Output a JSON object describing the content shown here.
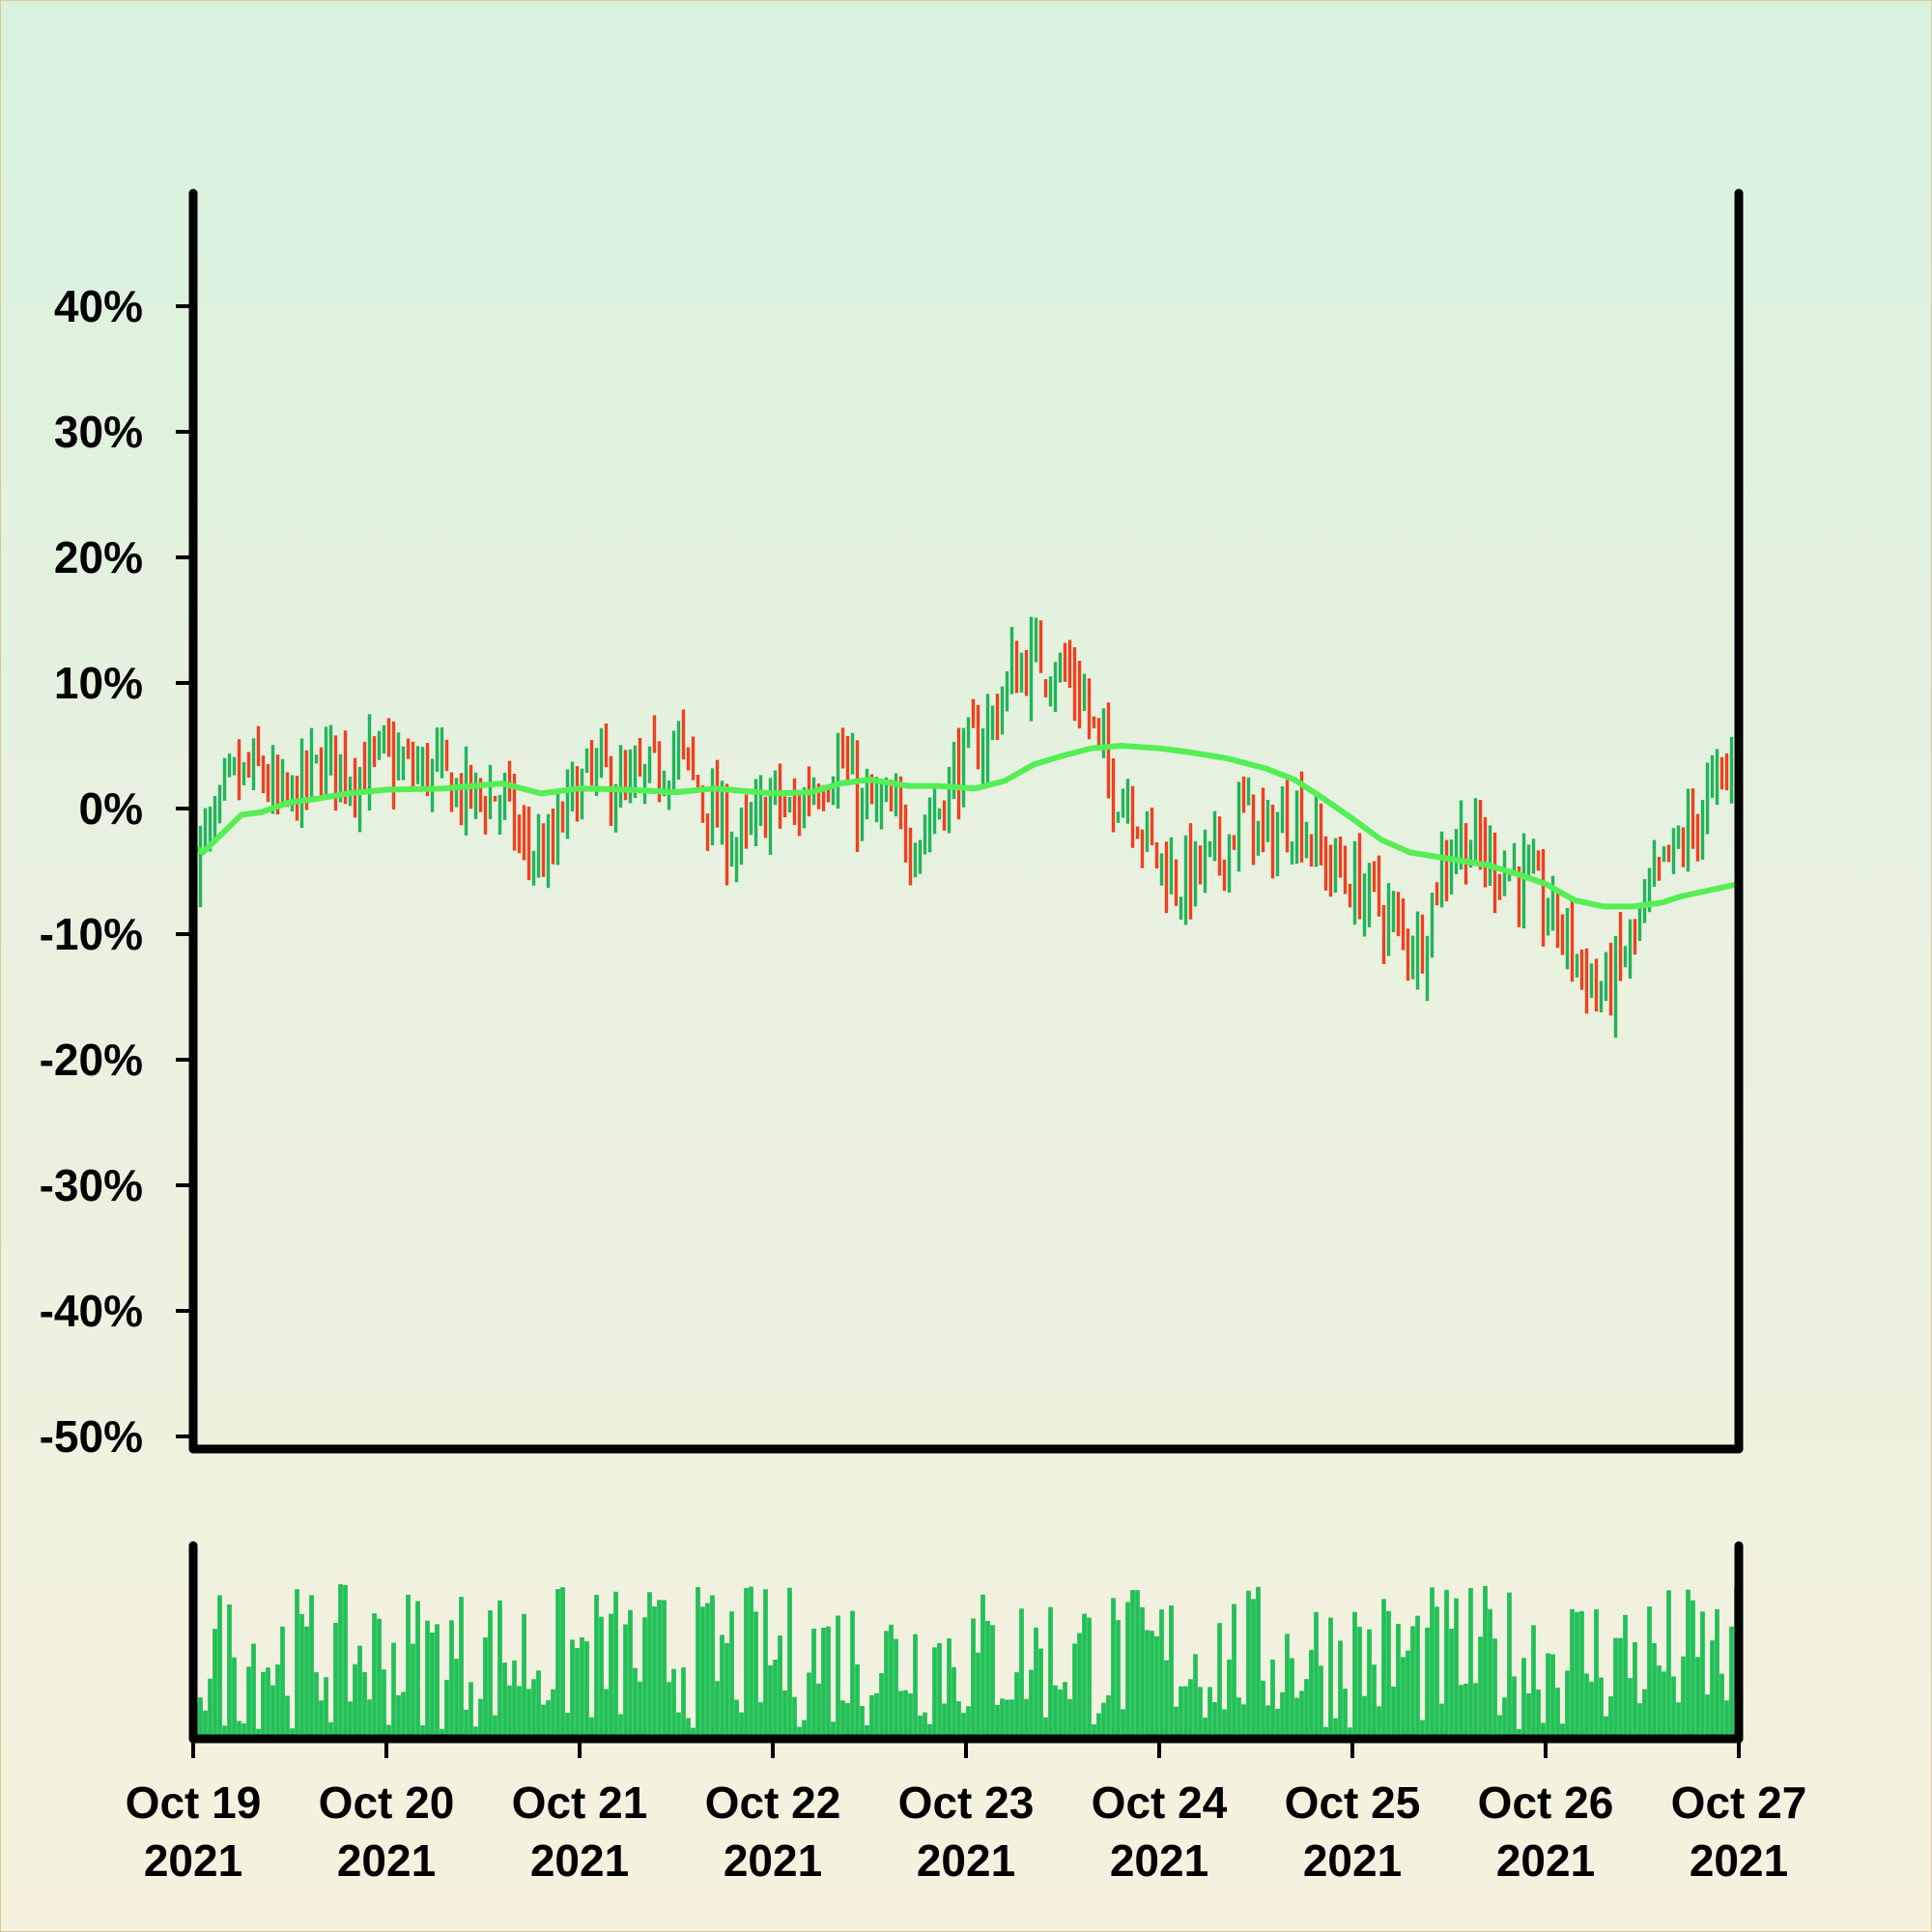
{
  "chart_data": [
    {
      "type": "ohlc",
      "panel": "price",
      "yaxis": {
        "ticks": [
          "40%",
          "30%",
          "20%",
          "10%",
          "0%",
          "-10%",
          "-20%",
          "-30%",
          "-40%",
          "-50%"
        ],
        "tick_values": [
          40,
          30,
          20,
          10,
          0,
          -10,
          -20,
          -30,
          -40,
          -50
        ],
        "range": [
          -51,
          49
        ],
        "unit": "%"
      },
      "xaxis": {
        "range": [
          "2021-10-19",
          "2021-10-27"
        ],
        "ticks": [
          {
            "line1": "Oct 19",
            "line2": "2021"
          },
          {
            "line1": "Oct 20",
            "line2": "2021"
          },
          {
            "line1": "Oct 21",
            "line2": "2021"
          },
          {
            "line1": "Oct 22",
            "line2": "2021"
          },
          {
            "line1": "Oct 23",
            "line2": "2021"
          },
          {
            "line1": "Oct 24",
            "line2": "2021"
          },
          {
            "line1": "Oct 25",
            "line2": "2021"
          },
          {
            "line1": "Oct 26",
            "line2": "2021"
          },
          {
            "line1": "Oct 27",
            "line2": "2021"
          }
        ]
      },
      "colors": {
        "up": "#22b45a",
        "down": "#f0401e",
        "ma": "#55ee55",
        "axis": "#000000"
      },
      "close_path": [
        [
          0,
          -4
        ],
        [
          0.1,
          -2
        ],
        [
          0.2,
          2
        ],
        [
          0.35,
          3
        ],
        [
          0.45,
          0
        ],
        [
          0.55,
          1.5
        ],
        [
          0.7,
          4
        ],
        [
          0.85,
          3
        ],
        [
          1.0,
          4
        ],
        [
          1.1,
          3
        ],
        [
          1.25,
          3
        ],
        [
          1.4,
          1
        ],
        [
          1.6,
          1
        ],
        [
          1.7,
          -3
        ],
        [
          1.85,
          -4
        ],
        [
          1.95,
          1
        ],
        [
          2.1,
          3
        ],
        [
          2.25,
          1
        ],
        [
          2.4,
          3
        ],
        [
          2.5,
          5
        ],
        [
          2.6,
          2
        ],
        [
          2.75,
          -2
        ],
        [
          2.85,
          -3
        ],
        [
          3.0,
          1
        ],
        [
          3.1,
          -1
        ],
        [
          3.2,
          2
        ],
        [
          3.35,
          4
        ],
        [
          3.45,
          0
        ],
        [
          3.55,
          0
        ],
        [
          3.7,
          -2
        ],
        [
          3.75,
          -2
        ],
        [
          3.85,
          0
        ],
        [
          3.95,
          3
        ],
        [
          4.1,
          6
        ],
        [
          4.25,
          11
        ],
        [
          4.4,
          12
        ],
        [
          4.5,
          11
        ],
        [
          4.6,
          9
        ],
        [
          4.75,
          2
        ],
        [
          4.85,
          1
        ],
        [
          4.95,
          -3
        ],
        [
          5.1,
          -6
        ],
        [
          5.3,
          -4
        ],
        [
          5.45,
          0
        ],
        [
          5.55,
          -3
        ],
        [
          5.7,
          0
        ],
        [
          5.85,
          -4
        ],
        [
          6.0,
          -6
        ],
        [
          6.1,
          -7
        ],
        [
          6.25,
          -10
        ],
        [
          6.35,
          -11
        ],
        [
          6.45,
          -5
        ],
        [
          6.55,
          -2
        ],
        [
          6.7,
          -4
        ],
        [
          6.85,
          -5
        ],
        [
          7.0,
          -8
        ],
        [
          7.1,
          -10
        ],
        [
          7.2,
          -13
        ],
        [
          7.3,
          -15
        ],
        [
          7.4,
          -12
        ],
        [
          7.5,
          -9
        ],
        [
          7.6,
          -5
        ],
        [
          7.7,
          -3
        ],
        [
          7.85,
          1
        ],
        [
          8.0,
          4
        ]
      ],
      "moving_average": [
        [
          0,
          -3
        ],
        [
          0.05,
          -3.5
        ],
        [
          0.15,
          -2
        ],
        [
          0.25,
          -0.5
        ],
        [
          0.35,
          -0.3
        ],
        [
          0.5,
          0.5
        ],
        [
          0.65,
          0.8
        ],
        [
          0.8,
          1.2
        ],
        [
          1.0,
          1.5
        ],
        [
          1.3,
          1.6
        ],
        [
          1.6,
          2
        ],
        [
          1.8,
          1.2
        ],
        [
          2.0,
          1.6
        ],
        [
          2.25,
          1.5
        ],
        [
          2.5,
          1.3
        ],
        [
          2.7,
          1.6
        ],
        [
          3.0,
          1.2
        ],
        [
          3.2,
          1.3
        ],
        [
          3.35,
          2.0
        ],
        [
          3.5,
          2.3
        ],
        [
          3.7,
          1.8
        ],
        [
          3.85,
          1.8
        ],
        [
          4.05,
          1.6
        ],
        [
          4.2,
          2.2
        ],
        [
          4.35,
          3.5
        ],
        [
          4.5,
          4.2
        ],
        [
          4.65,
          4.8
        ],
        [
          4.8,
          5.0
        ],
        [
          5.0,
          4.8
        ],
        [
          5.15,
          4.5
        ],
        [
          5.35,
          4.0
        ],
        [
          5.55,
          3.2
        ],
        [
          5.7,
          2.3
        ],
        [
          5.85,
          0.8
        ],
        [
          6.0,
          -0.8
        ],
        [
          6.15,
          -2.5
        ],
        [
          6.3,
          -3.5
        ],
        [
          6.5,
          -4.0
        ],
        [
          6.7,
          -4.5
        ],
        [
          6.85,
          -5.2
        ],
        [
          7.0,
          -6.0
        ],
        [
          7.15,
          -7.3
        ],
        [
          7.3,
          -7.8
        ],
        [
          7.45,
          -7.8
        ],
        [
          7.6,
          -7.5
        ],
        [
          7.7,
          -7.0
        ],
        [
          7.85,
          -6.5
        ],
        [
          8.0,
          -6.0
        ]
      ]
    },
    {
      "type": "bar",
      "panel": "volume",
      "color": "#22c058",
      "axis_visible": false
    }
  ]
}
